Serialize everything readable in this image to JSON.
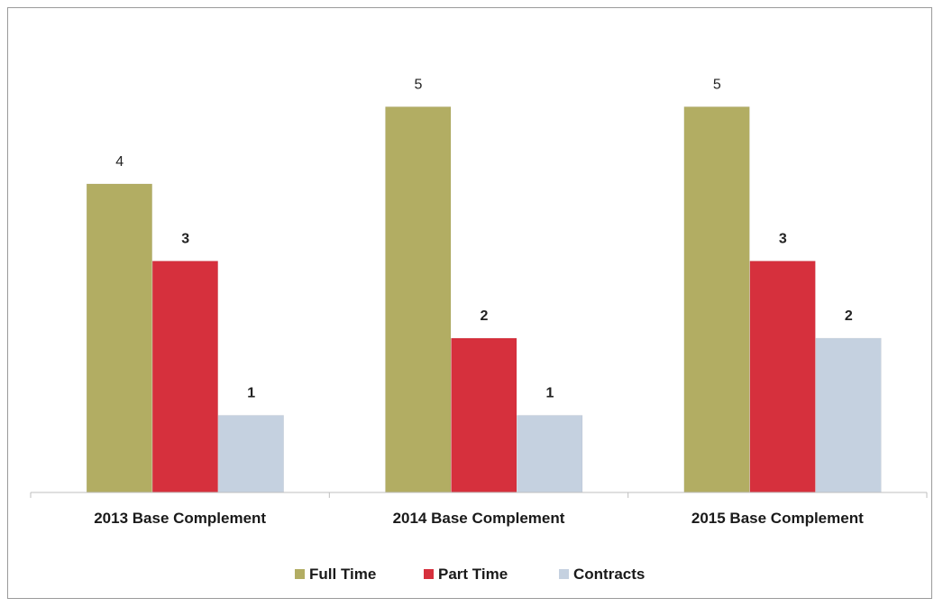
{
  "chart_data": {
    "type": "bar",
    "categories": [
      "2013 Base Complement",
      "2014 Base Complement",
      "2015 Base Complement"
    ],
    "series": [
      {
        "name": "Full Time",
        "values": [
          4,
          5,
          5
        ],
        "color": "#b2ad63"
      },
      {
        "name": "Part Time",
        "values": [
          3,
          2,
          3
        ],
        "color": "#d6303d"
      },
      {
        "name": "Contracts",
        "values": [
          1,
          1,
          2
        ],
        "color": "#c5d1e0"
      }
    ],
    "ylim": [
      0,
      5.8
    ],
    "grid": false,
    "legend_position": "bottom"
  }
}
